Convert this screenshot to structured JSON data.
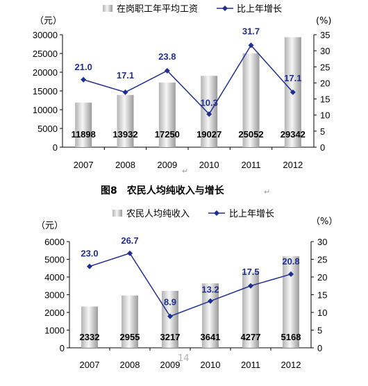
{
  "chart_data": [
    {
      "type": "bar",
      "categories": [
        "2007",
        "2008",
        "2009",
        "2010",
        "2011",
        "2012"
      ],
      "series": [
        {
          "name": "在岗职工年平均工资",
          "type": "bar",
          "axis": "left",
          "values": [
            11898,
            13932,
            17250,
            19027,
            25052,
            29342
          ]
        },
        {
          "name": "比上年增长",
          "type": "line",
          "axis": "right",
          "values": [
            21.0,
            17.1,
            23.8,
            10.3,
            31.7,
            17.1
          ]
        }
      ],
      "left_unit": "（元）",
      "right_unit": "(%)",
      "ylim_left": [
        0,
        30000
      ],
      "yticks_left": [
        "0",
        "5000",
        "10000",
        "15000",
        "20000",
        "25000",
        "30000"
      ],
      "ylim_right": [
        0,
        35
      ],
      "yticks_right": [
        "0",
        "5",
        "10",
        "15",
        "20",
        "25",
        "30",
        "35"
      ],
      "bar_labels": [
        "11898",
        "13932",
        "17250",
        "19027",
        "25052",
        "29342"
      ],
      "line_labels": [
        "21.0",
        "17.1",
        "23.8",
        "10.3",
        "31.7",
        "17.1"
      ],
      "legend_position": "top"
    },
    {
      "type": "bar",
      "title": "图8　农民人均纯收入与增长",
      "categories": [
        "2007",
        "2008",
        "2009",
        "2010",
        "2011",
        "2012"
      ],
      "series": [
        {
          "name": "农民人均纯收入",
          "type": "bar",
          "axis": "left",
          "values": [
            2332,
            2955,
            3217,
            3641,
            4277,
            5168
          ]
        },
        {
          "name": "比上年增长",
          "type": "line",
          "axis": "right",
          "values": [
            23.0,
            26.7,
            8.9,
            13.2,
            17.5,
            20.8
          ]
        }
      ],
      "left_unit": "（元）",
      "right_unit": "（%）",
      "ylim_left": [
        0,
        6000
      ],
      "yticks_left": [
        "0",
        "1000",
        "2000",
        "3000",
        "4000",
        "5000",
        "6000"
      ],
      "ylim_right": [
        0,
        30
      ],
      "yticks_right": [
        "0",
        "5",
        "10",
        "15",
        "20",
        "25",
        "30"
      ],
      "bar_labels": [
        "2332",
        "2955",
        "3217",
        "3641",
        "4277",
        "5168"
      ],
      "line_labels": [
        "23.0",
        "26.7",
        "8.9",
        "13.2",
        "17.5",
        "20.8"
      ],
      "legend_position": "top"
    }
  ],
  "title_mark": "↵",
  "tick_mark": "↵",
  "page_number": "14",
  "colors": {
    "line": "#1f2f8f",
    "bar_light": "#f4f4f4",
    "bar_dark": "#9c9c9c"
  }
}
